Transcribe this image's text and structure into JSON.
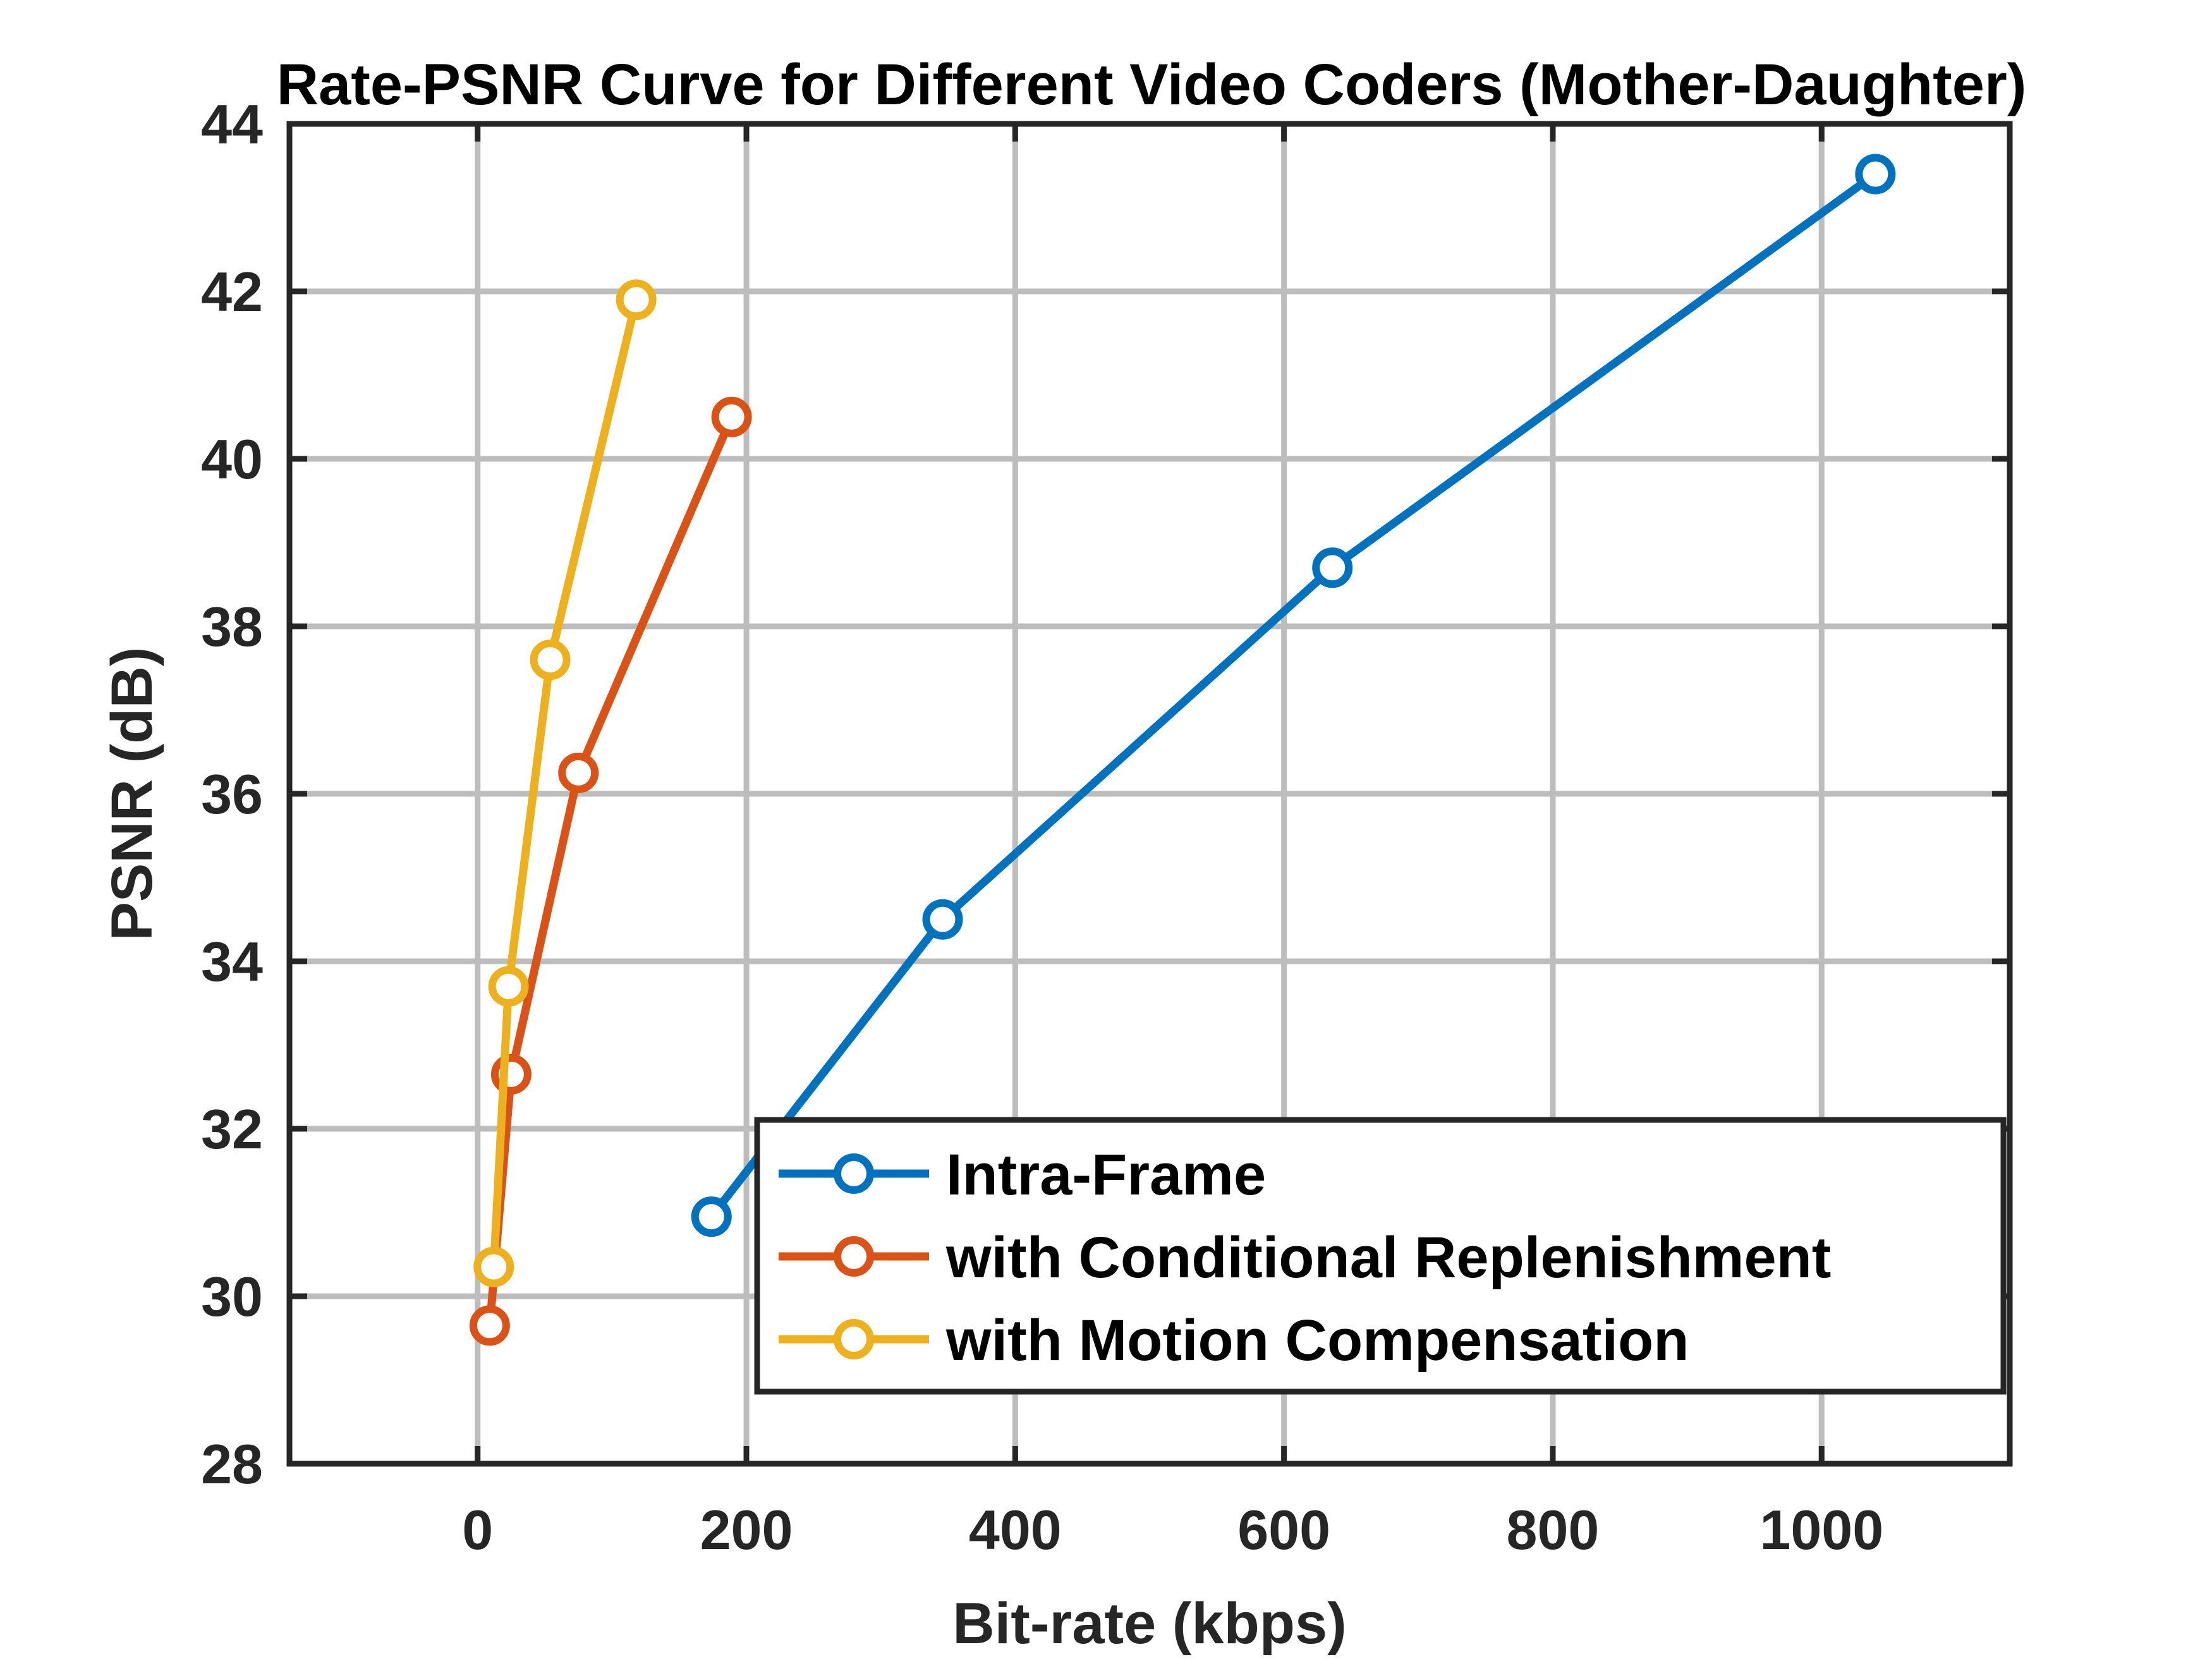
{
  "chart_data": {
    "type": "line",
    "title": "Rate-PSNR Curve for Different Video Coders (Mother-Daughter)",
    "xlabel": "Bit-rate (kbps)",
    "ylabel": "PSNR (dB)",
    "xlim": [
      -140,
      1140
    ],
    "ylim": [
      28,
      44
    ],
    "xticks": [
      0,
      200,
      400,
      600,
      800,
      1000
    ],
    "yticks": [
      28,
      30,
      32,
      34,
      36,
      38,
      40,
      42,
      44
    ],
    "xtick_labels": [
      "0",
      "200",
      "400",
      "600",
      "800",
      "1000"
    ],
    "ytick_labels": [
      "28",
      "30",
      "32",
      "34",
      "36",
      "38",
      "40",
      "42",
      "44"
    ],
    "grid": true,
    "legend_position": "bottom-right",
    "marker": "circle",
    "series": [
      {
        "name": "Intra-Frame",
        "color": "#0072BD",
        "x": [
          174,
          346,
          636,
          1040
        ],
        "y": [
          30.95,
          34.5,
          38.7,
          43.4
        ]
      },
      {
        "name": "with Conditional Replenishment",
        "color": "#D95319",
        "x": [
          9,
          25,
          75,
          189
        ],
        "y": [
          29.65,
          32.65,
          36.25,
          40.5
        ]
      },
      {
        "name": "with Motion Compensation",
        "color": "#EDB120",
        "x": [
          12,
          23,
          54,
          118
        ],
        "y": [
          30.35,
          33.7,
          37.6,
          41.9
        ]
      }
    ]
  }
}
